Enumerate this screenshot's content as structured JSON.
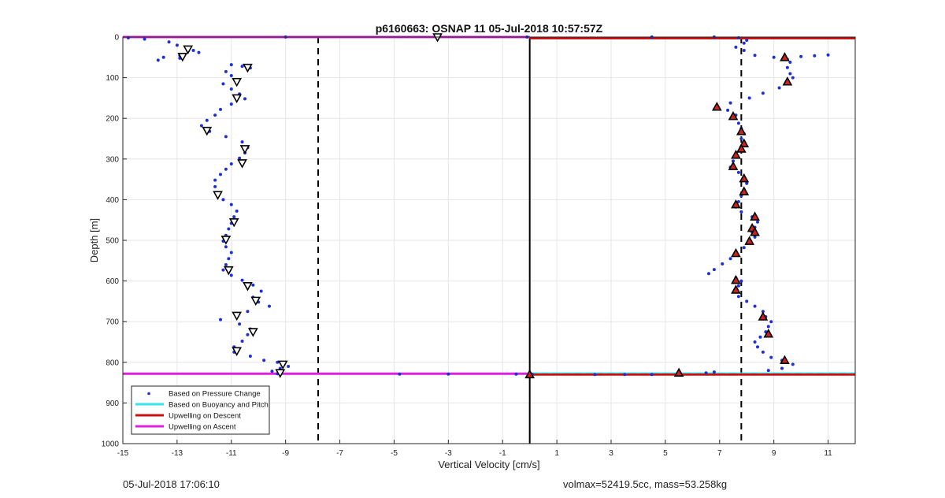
{
  "footer": {
    "timestamp": "05-Jul-2018 17:06:10",
    "mass_info": "volmax=52419.5cc, mass=53.258kg"
  },
  "colors": {
    "points": "#1f2fd6",
    "buoyancy": "#33e5f0",
    "descent": "#cc1111",
    "ascent": "#e020e0",
    "grid": "#e6e6e6",
    "marker_fill_descent": "#cc2222",
    "marker_fill_ascent": "#ffffff"
  },
  "chart_data": {
    "type": "scatter",
    "title": "p6160663: OSNAP 11 05-Jul-2018 10:57:57Z",
    "xlabel": "Vertical Velocity [cm/s]",
    "ylabel": "Depth [m]",
    "xlim": [
      -15,
      12
    ],
    "ylim": [
      0,
      1000
    ],
    "y_reversed": true,
    "grid": true,
    "legend_position": "bottom-left",
    "xticks": [
      -15,
      -13,
      -11,
      -9,
      -7,
      -5,
      -3,
      -1,
      1,
      3,
      5,
      7,
      9,
      11
    ],
    "yticks": [
      0,
      100,
      200,
      300,
      400,
      500,
      600,
      700,
      800,
      900,
      1000
    ],
    "legend": [
      {
        "label": "Based on Pressure Change",
        "style": "points"
      },
      {
        "label": "Based on Buoyancy and Pitch",
        "style": "buoyancy"
      },
      {
        "label": "Upwelling on Descent",
        "style": "descent"
      },
      {
        "label": "Upwelling on Ascent",
        "style": "ascent"
      }
    ],
    "reference_lines": [
      {
        "kind": "vertical",
        "x": -7.8,
        "style": "dashed"
      },
      {
        "kind": "vertical",
        "x": 7.8,
        "style": "dashed"
      },
      {
        "kind": "vertical",
        "x": 0,
        "style": "solid"
      },
      {
        "kind": "horizontal",
        "y": 828,
        "style": "dashed"
      }
    ],
    "upwelling_descent": {
      "depths": [
        3,
        830
      ],
      "x_range": [
        0,
        12
      ]
    },
    "upwelling_ascent": {
      "depths": [
        0,
        828
      ],
      "x_range": [
        -15,
        0
      ]
    },
    "series": [
      {
        "name": "Ascent (pressure change)",
        "side": "ascent",
        "points": [
          [
            -14.8,
            2
          ],
          [
            -14.2,
            5
          ],
          [
            -13.3,
            12
          ],
          [
            -13.0,
            20
          ],
          [
            -12.6,
            25
          ],
          [
            -12.4,
            33
          ],
          [
            -12.2,
            38
          ],
          [
            -12.9,
            45
          ],
          [
            -13.5,
            50
          ],
          [
            -13.7,
            57
          ],
          [
            -12.9,
            52
          ],
          [
            -11.0,
            68
          ],
          [
            -10.6,
            72
          ],
          [
            -10.3,
            76
          ],
          [
            -11.2,
            85
          ],
          [
            -11.0,
            95
          ],
          [
            -10.8,
            105
          ],
          [
            -11.3,
            115
          ],
          [
            -11.0,
            128
          ],
          [
            -10.7,
            140
          ],
          [
            -10.5,
            152
          ],
          [
            -11.0,
            165
          ],
          [
            -11.4,
            178
          ],
          [
            -11.6,
            192
          ],
          [
            -11.9,
            205
          ],
          [
            -12.1,
            218
          ],
          [
            -11.8,
            232
          ],
          [
            -11.2,
            245
          ],
          [
            -10.6,
            258
          ],
          [
            -10.4,
            272
          ],
          [
            -10.5,
            285
          ],
          [
            -10.7,
            298
          ],
          [
            -11.0,
            312
          ],
          [
            -11.2,
            325
          ],
          [
            -11.4,
            338
          ],
          [
            -11.6,
            352
          ],
          [
            -11.6,
            368
          ],
          [
            -11.5,
            385
          ],
          [
            -11.3,
            400
          ],
          [
            -11.0,
            412
          ],
          [
            -10.8,
            428
          ],
          [
            -10.9,
            442
          ],
          [
            -11.0,
            458
          ],
          [
            -11.1,
            472
          ],
          [
            -11.2,
            488
          ],
          [
            -11.3,
            502
          ],
          [
            -11.2,
            516
          ],
          [
            -11.0,
            530
          ],
          [
            -11.1,
            545
          ],
          [
            -11.2,
            560
          ],
          [
            -11.3,
            573
          ],
          [
            -11.0,
            586
          ],
          [
            -10.6,
            598
          ],
          [
            -10.2,
            610
          ],
          [
            -9.9,
            625
          ],
          [
            -10.2,
            640
          ],
          [
            -10.0,
            652
          ],
          [
            -9.6,
            662
          ],
          [
            -10.4,
            675
          ],
          [
            -10.8,
            688
          ],
          [
            -11.4,
            695
          ],
          [
            -10.7,
            706
          ],
          [
            -10.3,
            718
          ],
          [
            -10.4,
            732
          ],
          [
            -10.6,
            748
          ],
          [
            -10.9,
            762
          ],
          [
            -10.9,
            775
          ],
          [
            -10.3,
            785
          ],
          [
            -9.8,
            795
          ],
          [
            -9.3,
            800
          ],
          [
            -9.1,
            808
          ],
          [
            -8.9,
            810
          ],
          [
            -9.2,
            815
          ],
          [
            -9.5,
            822
          ],
          [
            -9.3,
            828
          ]
        ]
      },
      {
        "name": "Descent (pressure change)",
        "side": "descent",
        "points": [
          [
            4.5,
            0
          ],
          [
            6.8,
            0
          ],
          [
            7.7,
            2
          ],
          [
            8.0,
            8
          ],
          [
            7.9,
            15
          ],
          [
            7.6,
            25
          ],
          [
            7.9,
            33
          ],
          [
            8.3,
            45
          ],
          [
            9.0,
            50
          ],
          [
            9.5,
            55
          ],
          [
            10.0,
            48
          ],
          [
            10.5,
            46
          ],
          [
            11.0,
            44
          ],
          [
            9.6,
            62
          ],
          [
            9.5,
            75
          ],
          [
            9.6,
            90
          ],
          [
            9.7,
            100
          ],
          [
            9.5,
            112
          ],
          [
            9.2,
            125
          ],
          [
            8.6,
            138
          ],
          [
            8.1,
            150
          ],
          [
            7.4,
            162
          ],
          [
            6.9,
            172
          ],
          [
            7.3,
            180
          ],
          [
            7.6,
            192
          ],
          [
            7.5,
            200
          ],
          [
            7.7,
            212
          ],
          [
            7.8,
            225
          ],
          [
            7.9,
            238
          ],
          [
            7.8,
            250
          ],
          [
            7.9,
            262
          ],
          [
            7.8,
            275
          ],
          [
            7.6,
            290
          ],
          [
            7.5,
            305
          ],
          [
            7.4,
            320
          ],
          [
            7.7,
            333
          ],
          [
            7.9,
            345
          ],
          [
            8.0,
            360
          ],
          [
            7.9,
            375
          ],
          [
            7.8,
            390
          ],
          [
            7.7,
            405
          ],
          [
            7.6,
            418
          ],
          [
            7.8,
            430
          ],
          [
            8.2,
            442
          ],
          [
            8.4,
            455
          ],
          [
            8.3,
            468
          ],
          [
            8.2,
            480
          ],
          [
            8.3,
            492
          ],
          [
            8.1,
            505
          ],
          [
            7.9,
            518
          ],
          [
            7.6,
            532
          ],
          [
            7.4,
            545
          ],
          [
            7.1,
            558
          ],
          [
            6.8,
            572
          ],
          [
            6.6,
            582
          ],
          [
            7.6,
            592
          ],
          [
            7.8,
            600
          ],
          [
            7.7,
            612
          ],
          [
            7.6,
            625
          ],
          [
            7.7,
            638
          ],
          [
            8.0,
            650
          ],
          [
            8.3,
            662
          ],
          [
            8.6,
            675
          ],
          [
            8.7,
            688
          ],
          [
            8.9,
            700
          ],
          [
            8.8,
            712
          ],
          [
            8.7,
            725
          ],
          [
            8.5,
            738
          ],
          [
            8.3,
            750
          ],
          [
            8.4,
            762
          ],
          [
            8.6,
            775
          ],
          [
            8.9,
            788
          ],
          [
            9.3,
            795
          ],
          [
            9.7,
            805
          ],
          [
            9.3,
            815
          ],
          [
            8.8,
            820
          ],
          [
            6.8,
            824
          ],
          [
            6.5,
            826
          ],
          [
            5.5,
            828
          ],
          [
            4.5,
            830
          ],
          [
            3.5,
            830
          ],
          [
            2.4,
            830
          ],
          [
            0.1,
            830
          ]
        ]
      },
      {
        "name": "Surface and bottom connections",
        "side": "connection",
        "points": [
          [
            -9.0,
            0
          ],
          [
            -3.4,
            0
          ],
          [
            -0.1,
            0
          ],
          [
            -4.8,
            829
          ],
          [
            -3.0,
            829
          ],
          [
            -0.5,
            829
          ]
        ]
      }
    ],
    "markers": [
      {
        "side": "ascent",
        "points": [
          [
            -12.6,
            30
          ],
          [
            -12.8,
            48
          ],
          [
            -10.4,
            75
          ],
          [
            -10.8,
            110
          ],
          [
            -10.8,
            150
          ],
          [
            -11.9,
            230
          ],
          [
            -10.5,
            275
          ],
          [
            -10.6,
            310
          ],
          [
            -11.5,
            388
          ],
          [
            -10.9,
            455
          ],
          [
            -11.2,
            498
          ],
          [
            -11.1,
            573
          ],
          [
            -10.4,
            612
          ],
          [
            -10.1,
            648
          ],
          [
            -10.8,
            685
          ],
          [
            -10.2,
            725
          ],
          [
            -10.8,
            772
          ],
          [
            -9.1,
            805
          ],
          [
            -9.2,
            826
          ],
          [
            -3.4,
            0
          ]
        ]
      },
      {
        "side": "descent",
        "points": [
          [
            6.9,
            172
          ],
          [
            7.5,
            195
          ],
          [
            9.4,
            50
          ],
          [
            9.5,
            110
          ],
          [
            7.8,
            232
          ],
          [
            7.9,
            262
          ],
          [
            7.8,
            275
          ],
          [
            7.6,
            290
          ],
          [
            7.5,
            318
          ],
          [
            7.9,
            348
          ],
          [
            7.9,
            380
          ],
          [
            7.6,
            412
          ],
          [
            8.3,
            442
          ],
          [
            8.2,
            470
          ],
          [
            8.3,
            480
          ],
          [
            8.1,
            502
          ],
          [
            7.6,
            532
          ],
          [
            7.6,
            598
          ],
          [
            7.6,
            622
          ],
          [
            8.6,
            688
          ],
          [
            8.8,
            730
          ],
          [
            9.4,
            795
          ],
          [
            5.5,
            826
          ],
          [
            0,
            830
          ]
        ]
      }
    ]
  }
}
